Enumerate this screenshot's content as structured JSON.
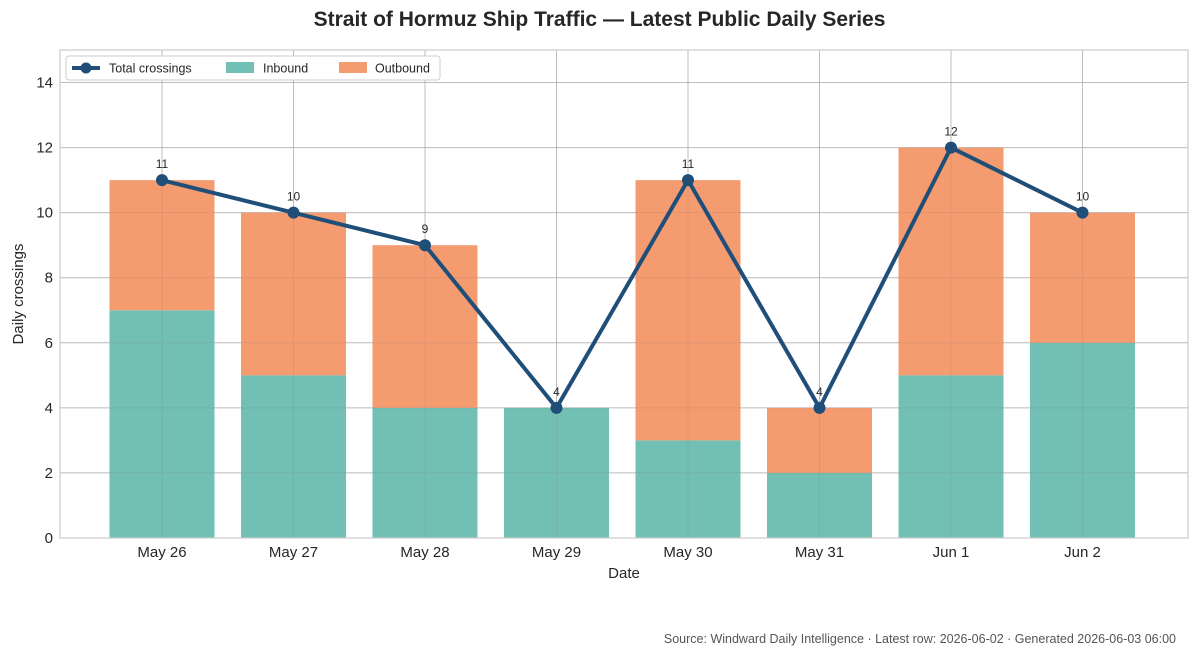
{
  "chart_data": {
    "type": "bar",
    "stacked": true,
    "title": "Strait of Hormuz Ship Traffic — Latest Public Daily Series",
    "xlabel": "Date",
    "ylabel": "Daily crossings",
    "ylim": [
      0,
      15
    ],
    "yticks": [
      0,
      2,
      4,
      6,
      8,
      10,
      12,
      14
    ],
    "grid": true,
    "legend_position": "top-left",
    "categories": [
      "May 26",
      "May 27",
      "May 28",
      "May 29",
      "May 30",
      "May 31",
      "Jun 1",
      "Jun 2"
    ],
    "series": [
      {
        "name": "Inbound",
        "kind": "bar",
        "color": "#72bfb4",
        "values": [
          7,
          5,
          4,
          4,
          3,
          2,
          5,
          6
        ]
      },
      {
        "name": "Outbound",
        "kind": "bar",
        "color": "#f59b70",
        "values": [
          4,
          5,
          5,
          0,
          8,
          2,
          7,
          4
        ]
      },
      {
        "name": "Total crossings",
        "kind": "line",
        "color": "#1f4e79",
        "values": [
          11,
          10,
          9,
          4,
          11,
          4,
          12,
          10
        ]
      }
    ],
    "data_labels": [
      "11",
      "10",
      "9",
      "4",
      "11",
      "4",
      "12",
      "10"
    ]
  },
  "footer": {
    "source": "Source: Windward Daily Intelligence · Latest row: 2026-06-02 · Generated 2026-06-03 06:00"
  }
}
